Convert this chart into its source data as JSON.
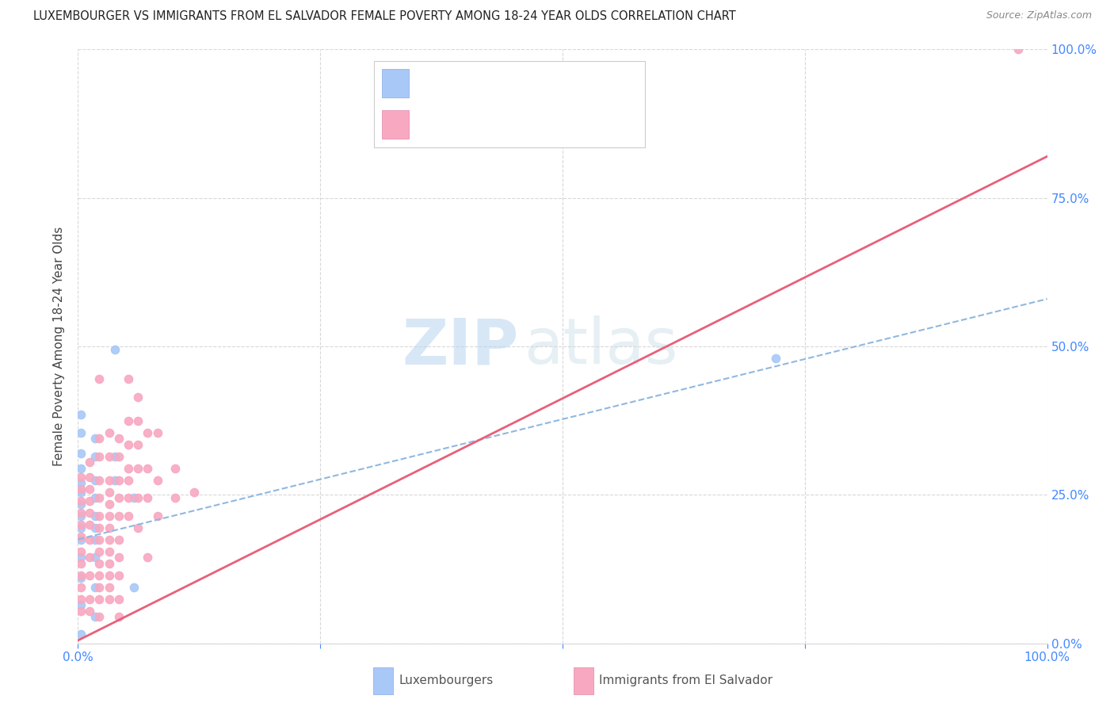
{
  "title": "LUXEMBOURGER VS IMMIGRANTS FROM EL SALVADOR FEMALE POVERTY AMONG 18-24 YEAR OLDS CORRELATION CHART",
  "source": "Source: ZipAtlas.com",
  "ylabel": "Female Poverty Among 18-24 Year Olds",
  "xlim": [
    0,
    1.0
  ],
  "ylim": [
    0,
    1.0
  ],
  "watermark_zip": "ZIP",
  "watermark_atlas": "atlas",
  "color_lux": "#a8c8f8",
  "color_sal": "#f8a8c0",
  "color_lux_line": "#90b8e0",
  "color_sal_line": "#e8607a",
  "title_color": "#222222",
  "source_color": "#888888",
  "axis_label_color": "#444444",
  "tick_color_blue": "#4488ff",
  "grid_color": "#d8d8d8",
  "lux_line_y0": 0.175,
  "lux_line_y1": 0.58,
  "sal_line_y0": 0.005,
  "sal_line_y1": 0.82,
  "lux_scatter": [
    [
      0.003,
      0.385
    ],
    [
      0.003,
      0.355
    ],
    [
      0.003,
      0.32
    ],
    [
      0.003,
      0.295
    ],
    [
      0.003,
      0.27
    ],
    [
      0.003,
      0.255
    ],
    [
      0.003,
      0.235
    ],
    [
      0.003,
      0.215
    ],
    [
      0.003,
      0.195
    ],
    [
      0.003,
      0.175
    ],
    [
      0.003,
      0.145
    ],
    [
      0.003,
      0.11
    ],
    [
      0.003,
      0.065
    ],
    [
      0.003,
      0.015
    ],
    [
      0.018,
      0.345
    ],
    [
      0.018,
      0.315
    ],
    [
      0.018,
      0.275
    ],
    [
      0.018,
      0.245
    ],
    [
      0.018,
      0.215
    ],
    [
      0.018,
      0.195
    ],
    [
      0.018,
      0.175
    ],
    [
      0.018,
      0.145
    ],
    [
      0.018,
      0.095
    ],
    [
      0.018,
      0.045
    ],
    [
      0.038,
      0.495
    ],
    [
      0.038,
      0.315
    ],
    [
      0.038,
      0.275
    ],
    [
      0.058,
      0.245
    ],
    [
      0.058,
      0.095
    ],
    [
      0.72,
      0.48
    ]
  ],
  "sal_scatter": [
    [
      0.003,
      0.28
    ],
    [
      0.003,
      0.26
    ],
    [
      0.003,
      0.24
    ],
    [
      0.003,
      0.22
    ],
    [
      0.003,
      0.2
    ],
    [
      0.003,
      0.18
    ],
    [
      0.003,
      0.155
    ],
    [
      0.003,
      0.135
    ],
    [
      0.003,
      0.115
    ],
    [
      0.003,
      0.095
    ],
    [
      0.003,
      0.075
    ],
    [
      0.003,
      0.055
    ],
    [
      0.012,
      0.305
    ],
    [
      0.012,
      0.28
    ],
    [
      0.012,
      0.26
    ],
    [
      0.012,
      0.24
    ],
    [
      0.012,
      0.22
    ],
    [
      0.012,
      0.2
    ],
    [
      0.012,
      0.175
    ],
    [
      0.012,
      0.145
    ],
    [
      0.012,
      0.115
    ],
    [
      0.012,
      0.075
    ],
    [
      0.012,
      0.055
    ],
    [
      0.022,
      0.445
    ],
    [
      0.022,
      0.345
    ],
    [
      0.022,
      0.315
    ],
    [
      0.022,
      0.275
    ],
    [
      0.022,
      0.245
    ],
    [
      0.022,
      0.215
    ],
    [
      0.022,
      0.195
    ],
    [
      0.022,
      0.175
    ],
    [
      0.022,
      0.155
    ],
    [
      0.022,
      0.135
    ],
    [
      0.022,
      0.115
    ],
    [
      0.022,
      0.095
    ],
    [
      0.022,
      0.075
    ],
    [
      0.022,
      0.045
    ],
    [
      0.032,
      0.355
    ],
    [
      0.032,
      0.315
    ],
    [
      0.032,
      0.275
    ],
    [
      0.032,
      0.255
    ],
    [
      0.032,
      0.235
    ],
    [
      0.032,
      0.215
    ],
    [
      0.032,
      0.195
    ],
    [
      0.032,
      0.175
    ],
    [
      0.032,
      0.155
    ],
    [
      0.032,
      0.135
    ],
    [
      0.032,
      0.115
    ],
    [
      0.032,
      0.095
    ],
    [
      0.032,
      0.075
    ],
    [
      0.042,
      0.345
    ],
    [
      0.042,
      0.315
    ],
    [
      0.042,
      0.275
    ],
    [
      0.042,
      0.245
    ],
    [
      0.042,
      0.215
    ],
    [
      0.042,
      0.175
    ],
    [
      0.042,
      0.145
    ],
    [
      0.042,
      0.115
    ],
    [
      0.042,
      0.075
    ],
    [
      0.042,
      0.045
    ],
    [
      0.052,
      0.445
    ],
    [
      0.052,
      0.375
    ],
    [
      0.052,
      0.335
    ],
    [
      0.052,
      0.295
    ],
    [
      0.052,
      0.275
    ],
    [
      0.052,
      0.245
    ],
    [
      0.052,
      0.215
    ],
    [
      0.062,
      0.415
    ],
    [
      0.062,
      0.375
    ],
    [
      0.062,
      0.335
    ],
    [
      0.062,
      0.295
    ],
    [
      0.062,
      0.245
    ],
    [
      0.062,
      0.195
    ],
    [
      0.072,
      0.355
    ],
    [
      0.072,
      0.295
    ],
    [
      0.072,
      0.245
    ],
    [
      0.072,
      0.145
    ],
    [
      0.082,
      0.355
    ],
    [
      0.082,
      0.275
    ],
    [
      0.082,
      0.215
    ],
    [
      0.1,
      0.295
    ],
    [
      0.1,
      0.245
    ],
    [
      0.12,
      0.255
    ],
    [
      0.97,
      1.0
    ]
  ]
}
